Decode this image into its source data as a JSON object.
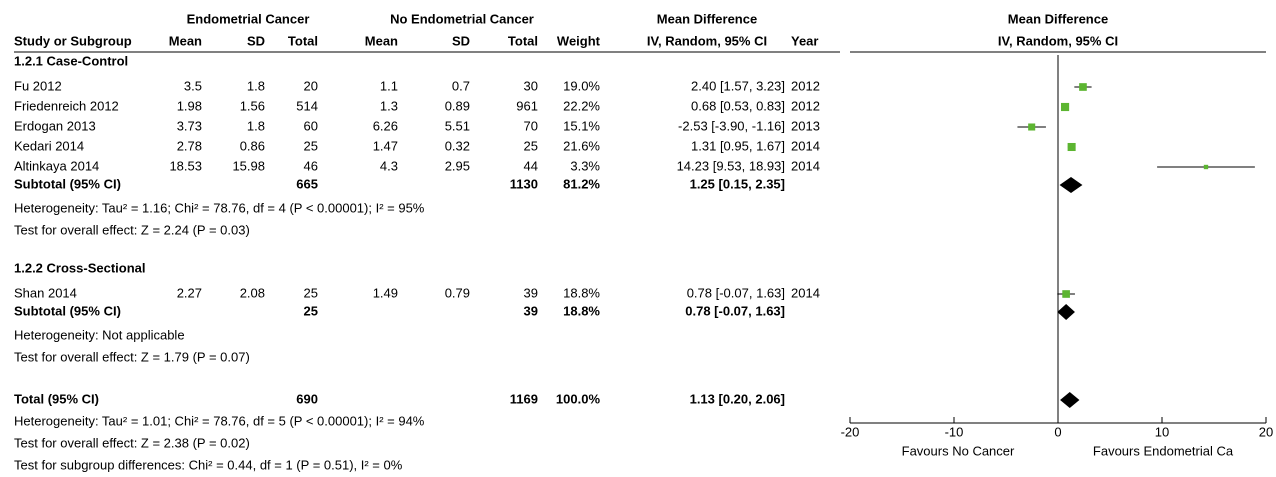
{
  "chart_data": {
    "type": "forest",
    "headers": {
      "group1": "Endometrial Cancer",
      "group2": "No Endometrial Cancer",
      "md": "Mean Difference",
      "study": "Study or Subgroup",
      "mean1": "Mean",
      "sd1": "SD",
      "total1": "Total",
      "mean2": "Mean",
      "sd2": "SD",
      "total2": "Total",
      "weight": "Weight",
      "method": "IV, Random, 95% CI",
      "year": "Year",
      "plot_title": "Mean Difference",
      "plot_method": "IV, Random, 95% CI"
    },
    "subgroups": [
      {
        "name": "1.2.1 Case-Control",
        "studies": [
          {
            "name": "Fu 2012",
            "mean1": 3.5,
            "sd1": 1.8,
            "n1": 20,
            "mean2": 1.1,
            "sd2": 0.7,
            "n2": 30,
            "weight": 19.0,
            "weight_label": "19.0%",
            "md": 2.4,
            "lo": 1.57,
            "hi": 3.23,
            "ci_label": "2.40 [1.57, 3.23]",
            "year": 2012
          },
          {
            "name": "Friedenreich 2012",
            "mean1": 1.98,
            "sd1": 1.56,
            "n1": 514,
            "mean2": 1.3,
            "sd2": 0.89,
            "n2": 961,
            "weight": 22.2,
            "weight_label": "22.2%",
            "md": 0.68,
            "lo": 0.53,
            "hi": 0.83,
            "ci_label": "0.68 [0.53, 0.83]",
            "year": 2012
          },
          {
            "name": "Erdogan 2013",
            "mean1": 3.73,
            "sd1": 1.8,
            "n1": 60,
            "mean2": 6.26,
            "sd2": 5.51,
            "n2": 70,
            "weight": 15.1,
            "weight_label": "15.1%",
            "md": -2.53,
            "lo": -3.9,
            "hi": -1.16,
            "ci_label": "-2.53 [-3.90, -1.16]",
            "year": 2013
          },
          {
            "name": "Kedari 2014",
            "mean1": 2.78,
            "sd1": 0.86,
            "n1": 25,
            "mean2": 1.47,
            "sd2": 0.32,
            "n2": 25,
            "weight": 21.6,
            "weight_label": "21.6%",
            "md": 1.31,
            "lo": 0.95,
            "hi": 1.67,
            "ci_label": "1.31 [0.95, 1.67]",
            "year": 2014
          },
          {
            "name": "Altinkaya 2014",
            "mean1": 18.53,
            "sd1": 15.98,
            "n1": 46,
            "mean2": 4.3,
            "sd2": 2.95,
            "n2": 44,
            "weight": 3.3,
            "weight_label": "3.3%",
            "md": 14.23,
            "lo": 9.53,
            "hi": 18.93,
            "ci_label": "14.23 [9.53, 18.93]",
            "year": 2014
          }
        ],
        "subtotal": {
          "name": "Subtotal (95% CI)",
          "n1": 665,
          "n2": 1130,
          "weight": 81.2,
          "weight_label": "81.2%",
          "md": 1.25,
          "lo": 0.15,
          "hi": 2.35,
          "ci_label": "1.25 [0.15, 2.35]"
        },
        "notes": [
          "Heterogeneity: Tau² = 1.16; Chi² = 78.76, df = 4 (P < 0.00001); I² = 95%",
          "Test for overall effect: Z = 2.24 (P = 0.03)"
        ]
      },
      {
        "name": "1.2.2 Cross-Sectional",
        "studies": [
          {
            "name": "Shan 2014",
            "mean1": 2.27,
            "sd1": 2.08,
            "n1": 25,
            "mean2": 1.49,
            "sd2": 0.79,
            "n2": 39,
            "weight": 18.8,
            "weight_label": "18.8%",
            "md": 0.78,
            "lo": -0.07,
            "hi": 1.63,
            "ci_label": "0.78 [-0.07, 1.63]",
            "year": 2014
          }
        ],
        "subtotal": {
          "name": "Subtotal (95% CI)",
          "n1": 25,
          "n2": 39,
          "weight": 18.8,
          "weight_label": "18.8%",
          "md": 0.78,
          "lo": -0.07,
          "hi": 1.63,
          "ci_label": "0.78 [-0.07, 1.63]"
        },
        "notes": [
          "Heterogeneity: Not applicable",
          "Test for overall effect: Z = 1.79 (P = 0.07)"
        ]
      }
    ],
    "total": {
      "name": "Total (95% CI)",
      "n1": 690,
      "n2": 1169,
      "weight": 100.0,
      "weight_label": "100.0%",
      "md": 1.13,
      "lo": 0.2,
      "hi": 2.06,
      "ci_label": "1.13 [0.20, 2.06]"
    },
    "total_notes": [
      "Heterogeneity: Tau² = 1.01; Chi² = 78.76, df = 5 (P < 0.00001); I² = 94%",
      "Test for overall effect: Z = 2.38 (P = 0.02)",
      "Test for subgroup differences: Chi² = 0.44, df = 1 (P = 0.51), I² = 0%"
    ],
    "xlim": [
      -20,
      20
    ],
    "xticks": [
      -20,
      -10,
      0,
      10,
      20
    ],
    "favours_left": "Favours No Cancer",
    "favours_right": "Favours Endometrial Ca",
    "marker_color": "#5cb531"
  }
}
